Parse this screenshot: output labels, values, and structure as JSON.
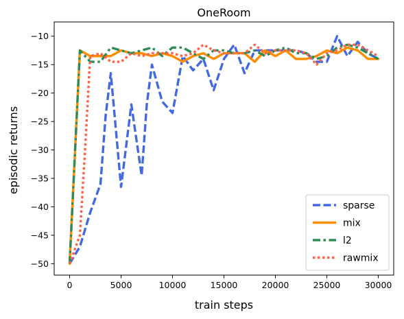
{
  "chart_data": {
    "type": "line",
    "title": "OneRoom",
    "xlabel": "train steps",
    "ylabel": "episodic returns",
    "xlim": [
      -1500,
      31500
    ],
    "ylim": [
      -52,
      -7.5
    ],
    "xticks": [
      0,
      5000,
      10000,
      15000,
      20000,
      25000,
      30000
    ],
    "yticks": [
      -50,
      -45,
      -40,
      -35,
      -30,
      -25,
      -20,
      -15,
      -10
    ],
    "grid": false,
    "legend_position": "bottom-right",
    "series": [
      {
        "name": "sparse",
        "color": "#4169E1",
        "style": "dashed",
        "x": [
          0,
          1000,
          2000,
          3000,
          3500,
          4000,
          5000,
          6000,
          7000,
          7500,
          8000,
          9000,
          10000,
          11000,
          12000,
          13000,
          14000,
          15000,
          16000,
          17000,
          18000,
          19000,
          20000,
          21000,
          22000,
          23000,
          24000,
          25000,
          26000,
          27000,
          28000,
          29000,
          30000
        ],
        "y": [
          -50,
          -47,
          -41,
          -36,
          -24,
          -16.5,
          -36.5,
          -22,
          -34.5,
          -22,
          -15,
          -21.5,
          -23.5,
          -13.5,
          -16,
          -14,
          -19.5,
          -14,
          -11.5,
          -16.5,
          -12.5,
          -12.5,
          -12.5,
          -12.5,
          -12.5,
          -13,
          -14.5,
          -14.5,
          -10,
          -13.5,
          -11,
          -13,
          -14
        ]
      },
      {
        "name": "mix",
        "color": "#FF8C00",
        "style": "solid",
        "x": [
          0,
          1000,
          2000,
          3000,
          4000,
          5000,
          6000,
          7000,
          8000,
          9000,
          10000,
          11000,
          12000,
          13000,
          14000,
          15000,
          16000,
          17000,
          18000,
          19000,
          20000,
          21000,
          22000,
          23000,
          24000,
          25000,
          26000,
          27000,
          28000,
          29000,
          30000
        ],
        "y": [
          -50,
          -12.5,
          -13.5,
          -13.5,
          -13.5,
          -12.5,
          -13,
          -13,
          -13.5,
          -13,
          -13.5,
          -14.5,
          -13.5,
          -13,
          -14,
          -13,
          -13,
          -13,
          -14.5,
          -12.5,
          -13.5,
          -12.5,
          -14,
          -14,
          -13.5,
          -12.5,
          -13,
          -12,
          -12.5,
          -14,
          -14
        ]
      },
      {
        "name": "l2",
        "color": "#2E8B57",
        "style": "dashdot",
        "x": [
          0,
          1000,
          2000,
          3000,
          4000,
          5000,
          6000,
          7000,
          8000,
          9000,
          10000,
          11000,
          12000,
          13000,
          14000,
          15000,
          16000,
          17000,
          18000,
          19000,
          20000,
          21000,
          22000,
          23000,
          24000,
          25000,
          26000,
          27000,
          28000,
          29000,
          30000
        ],
        "y": [
          -50,
          -12.5,
          -14.5,
          -14.5,
          -12,
          -12.5,
          -13,
          -12.5,
          -12,
          -13.5,
          -12,
          -12,
          -13,
          -14,
          -12.5,
          -12.5,
          -13,
          -13,
          -12.5,
          -13.5,
          -12.5,
          -12,
          -13,
          -13,
          -14,
          -13.5,
          -12,
          -11.5,
          -12,
          -13,
          -14
        ]
      },
      {
        "name": "rawmix",
        "color": "#FF6347",
        "style": "dotted",
        "x": [
          0,
          1000,
          1500,
          2000,
          3000,
          4000,
          5000,
          6000,
          7000,
          8000,
          9000,
          10000,
          11000,
          12000,
          13000,
          14000,
          15000,
          16000,
          17000,
          18000,
          19000,
          20000,
          21000,
          22000,
          23000,
          24000,
          25000,
          26000,
          27000,
          28000,
          29000,
          30000
        ],
        "y": [
          -50,
          -45,
          -30,
          -13.5,
          -13,
          -14.5,
          -14.5,
          -13,
          -13.5,
          -13,
          -13,
          -13,
          -13.5,
          -13,
          -11.5,
          -12.5,
          -13,
          -13,
          -13,
          -11.5,
          -13,
          -12.5,
          -12.5,
          -12.5,
          -13,
          -15,
          -13,
          -12.5,
          -11.5,
          -11.5,
          -12.5,
          -13.5
        ]
      }
    ]
  }
}
